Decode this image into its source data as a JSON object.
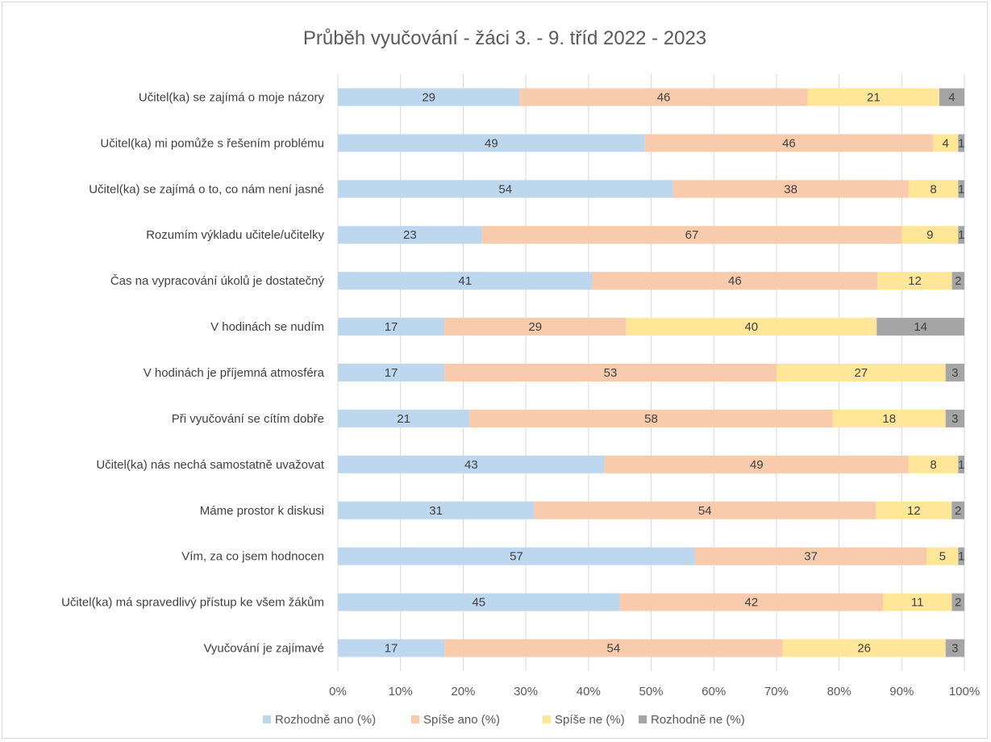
{
  "chart_data": {
    "type": "bar",
    "orientation": "horizontal",
    "stacked": "percent",
    "title": "Průběh vyučování - žáci 3. - 9. tříd 2022 - 2023",
    "categories": [
      "Učitel(ka) se zajímá o moje názory",
      "Učitel(ka) mi pomůže s řešením problému",
      "Učitel(ka) se zajímá o to, co nám není jasné",
      "Rozumím výkladu učitele/učitelky",
      "Čas na vypracování úkolů je dostatečný",
      "V hodinách se nudím",
      "V hodinách je příjemná atmosféra",
      "Při vyučování se cítím dobře",
      "Učitel(ka) nás nechá samostatně uvažovat",
      "Máme prostor k diskusi",
      "Vím, za co jsem hodnocen",
      "Učitel(ka) má spravedlivý přístup ke všem žákům",
      "Vyučování je zajímavé"
    ],
    "series": [
      {
        "name": "Rozhodně ano (%)",
        "color": "#bdd7ee",
        "values": [
          29,
          49,
          54,
          23,
          41,
          17,
          17,
          21,
          43,
          31,
          57,
          45,
          17
        ]
      },
      {
        "name": "Spíše ano (%)",
        "color": "#f8cbad",
        "values": [
          46,
          46,
          38,
          67,
          46,
          29,
          53,
          58,
          49,
          54,
          37,
          42,
          54
        ]
      },
      {
        "name": "Spíše ne (%)",
        "color": "#ffe699",
        "values": [
          21,
          4,
          8,
          9,
          12,
          40,
          27,
          18,
          8,
          12,
          5,
          11,
          26
        ]
      },
      {
        "name": "Rozhodně ne (%)",
        "color": "#a5a5a5",
        "values": [
          4,
          1,
          1,
          1,
          2,
          14,
          3,
          3,
          1,
          2,
          1,
          2,
          3
        ]
      }
    ],
    "xticks": [
      "0%",
      "10%",
      "20%",
      "30%",
      "40%",
      "50%",
      "60%",
      "70%",
      "80%",
      "90%",
      "100%"
    ],
    "xlim": [
      0,
      100
    ],
    "legend": "bottom",
    "grid": true
  }
}
